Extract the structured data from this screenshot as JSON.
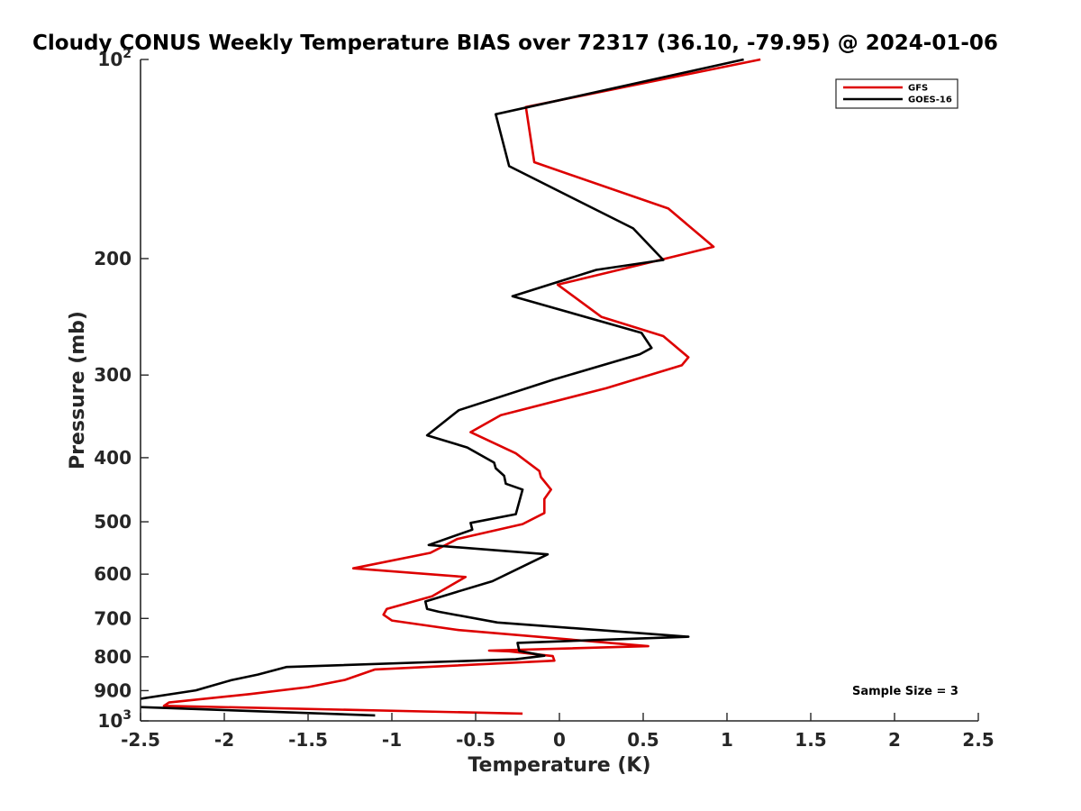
{
  "chart_data": {
    "type": "line",
    "title": "Cloudy CONUS Weekly Temperature BIAS over 72317 (36.10, -79.95) @ 2024-01-06",
    "xlabel": "Temperature (K)",
    "ylabel": "Pressure (mb)",
    "xlim": [
      -2.5,
      2.5
    ],
    "ylim": [
      100,
      1000
    ],
    "y_scale": "log",
    "y_reversed": true,
    "grid": false,
    "legend_position": "top-right",
    "x_ticks": [
      "-2.5",
      "-2",
      "-1.5",
      "-1",
      "-0.5",
      "0",
      "0.5",
      "1",
      "1.5",
      "2",
      "2.5"
    ],
    "y_ticks": [
      {
        "value": 100,
        "base": "10",
        "exp": "2"
      },
      {
        "value": 200,
        "label": "200"
      },
      {
        "value": 300,
        "label": "300"
      },
      {
        "value": 400,
        "label": "400"
      },
      {
        "value": 500,
        "label": "500"
      },
      {
        "value": 600,
        "label": "600"
      },
      {
        "value": 700,
        "label": "700"
      },
      {
        "value": 800,
        "label": "800"
      },
      {
        "value": 900,
        "label": "900"
      },
      {
        "value": 1000,
        "base": "10",
        "exp": "3"
      }
    ],
    "annotation": "Sample Size = 3",
    "series": [
      {
        "name": "GFS",
        "color": "#dd0000",
        "x": [
          1.2,
          -0.2,
          -0.15,
          0.65,
          0.92,
          0.6,
          -0.01,
          0.25,
          0.62,
          0.77,
          0.73,
          0.28,
          -0.35,
          -0.53,
          -0.26,
          -0.12,
          -0.11,
          -0.05,
          -0.09,
          -0.09,
          -0.22,
          -0.61,
          -0.77,
          -1.23,
          -0.56,
          -0.76,
          -1.03,
          -1.05,
          -1.0,
          -0.6,
          0.53,
          -0.42,
          -0.3,
          -0.04,
          -0.03,
          -1.1,
          -1.28,
          -1.5,
          -1.85,
          -2.33,
          -2.36,
          -0.22
        ],
        "y": [
          100,
          118,
          143,
          168,
          192,
          201,
          219,
          245,
          262,
          282,
          290,
          314,
          345,
          366,
          394,
          419,
          428,
          447,
          462,
          485,
          504,
          531,
          557,
          588,
          606,
          648,
          677,
          691,
          705,
          729,
          771,
          783,
          785,
          798,
          811,
          836,
          867,
          889,
          911,
          938,
          949,
          975
        ]
      },
      {
        "name": "GOES-16",
        "color": "#000000",
        "x": [
          1.1,
          -0.38,
          -0.3,
          0.44,
          0.62,
          0.22,
          -0.28,
          0.49,
          0.55,
          0.48,
          -0.04,
          -0.6,
          -0.79,
          -0.55,
          -0.39,
          -0.38,
          -0.33,
          -0.32,
          -0.22,
          -0.26,
          -0.53,
          -0.52,
          -0.78,
          -0.07,
          -0.4,
          -0.61,
          -0.8,
          -0.79,
          -0.72,
          -0.37,
          0.77,
          -0.25,
          -0.24,
          -0.09,
          -0.26,
          -1.63,
          -1.8,
          -1.96,
          -2.17,
          -2.55,
          -2.56,
          -1.1
        ],
        "y": [
          100,
          121,
          145,
          180,
          201,
          208,
          228,
          259,
          273,
          279,
          305,
          339,
          370,
          386,
          407,
          415,
          426,
          438,
          447,
          487,
          502,
          514,
          542,
          560,
          615,
          638,
          660,
          677,
          684,
          710,
          746,
          762,
          784,
          797,
          807,
          829,
          851,
          868,
          899,
          930,
          952,
          981
        ]
      }
    ]
  }
}
